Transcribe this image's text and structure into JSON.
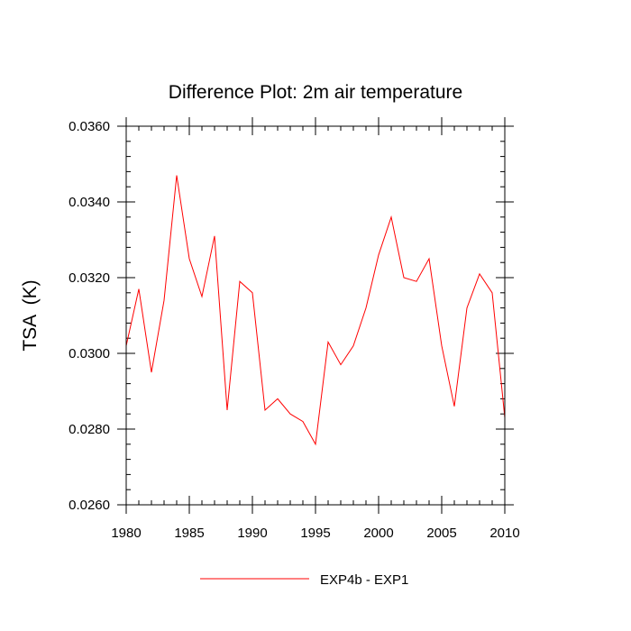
{
  "chart_data": {
    "type": "line",
    "title": "Difference Plot: 2m air temperature",
    "xlabel": "",
    "ylabel": "TSA  (K)",
    "xlim": [
      1980,
      2010
    ],
    "ylim": [
      0.026,
      0.036
    ],
    "xticks": [
      1980,
      1985,
      1990,
      1995,
      2000,
      2005,
      2010
    ],
    "xtick_labels": [
      "1980",
      "1985",
      "1990",
      "1995",
      "2000",
      "2005",
      "2010"
    ],
    "yticks": [
      0.026,
      0.028,
      0.03,
      0.032,
      0.034,
      0.036
    ],
    "ytick_labels": [
      "0.0260",
      "0.0280",
      "0.0300",
      "0.0320",
      "0.0340",
      "0.0360"
    ],
    "grid": false,
    "legend_position": "bottom-center",
    "series": [
      {
        "name": "EXP4b - EXP1",
        "color": "#ff0000",
        "x": [
          1980,
          1981,
          1982,
          1983,
          1984,
          1985,
          1986,
          1987,
          1988,
          1989,
          1990,
          1991,
          1992,
          1993,
          1994,
          1995,
          1996,
          1997,
          1998,
          1999,
          2000,
          2001,
          2002,
          2003,
          2004,
          2005,
          2006,
          2007,
          2008,
          2009,
          2010
        ],
        "values": [
          0.0302,
          0.0317,
          0.0295,
          0.0314,
          0.0347,
          0.0325,
          0.0315,
          0.0331,
          0.0285,
          0.0319,
          0.0316,
          0.0285,
          0.0288,
          0.0284,
          0.0282,
          0.0276,
          0.0303,
          0.0297,
          0.0302,
          0.0312,
          0.0326,
          0.0336,
          0.032,
          0.0319,
          0.0325,
          0.0302,
          0.0286,
          0.0312,
          0.0321,
          0.0316,
          0.0283
        ]
      }
    ]
  }
}
